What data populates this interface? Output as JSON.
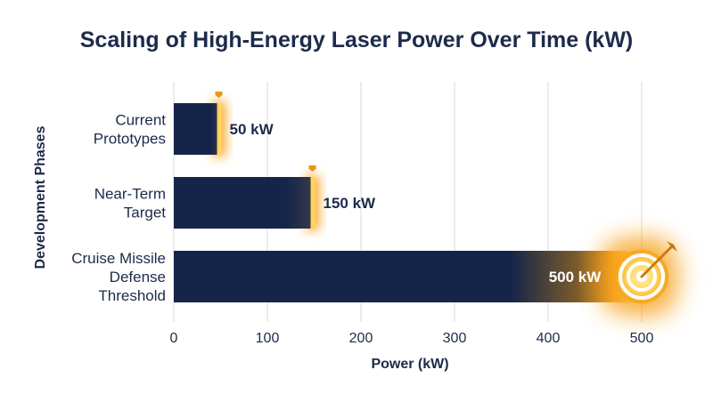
{
  "chart_data": {
    "type": "bar",
    "orientation": "horizontal",
    "title": "Scaling of High-Energy Laser Power Over Time (kW)",
    "xlabel": "Power (kW)",
    "ylabel": "Development Phases",
    "xlim": [
      0,
      500
    ],
    "xticks": [
      0,
      100,
      200,
      300,
      400,
      500
    ],
    "grid": true,
    "categories": [
      [
        "Current",
        "Prototypes"
      ],
      [
        "Near-Term",
        "Target"
      ],
      [
        "Cruise Missile",
        "Defense",
        "Threshold"
      ]
    ],
    "values": [
      50,
      150,
      500
    ],
    "value_labels": [
      "50 kW",
      "150 kW",
      "500 kW"
    ],
    "colors": {
      "bar": "#15254a",
      "glow": "#f7a21b",
      "glow_light": "#ffd45c",
      "marker": "#e8961a",
      "text": "#1c2b4a",
      "grid": "#d9d9d9"
    },
    "markers": [
      "shield-marker",
      "shield-marker",
      "target-icon"
    ]
  }
}
